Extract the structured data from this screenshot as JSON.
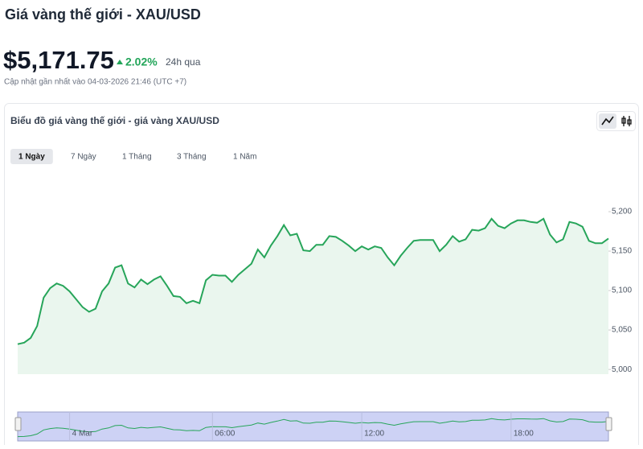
{
  "header": {
    "title": "Giá vàng thế giới - XAU/USD",
    "price": "$5,171.75",
    "change": "2.02%",
    "period": "24h qua",
    "updated": "Cập nhật gần nhất vào 04-03-2026 21:46 (UTC +7)"
  },
  "tabs": {
    "items": [
      "1 Ngày",
      "7 Ngày",
      "1 Tháng",
      "3 Tháng",
      "1 Năm"
    ],
    "active": 0
  },
  "chart_data": {
    "type": "line",
    "title": "Biểu đồ giá vàng thế giới - giá vàng XAU/USD",
    "color": "#27a55a",
    "values": [
      5032,
      5034,
      5040,
      5055,
      5091,
      5103,
      5109,
      5106,
      5099,
      5089,
      5079,
      5073,
      5077,
      5099,
      5109,
      5129,
      5132,
      5109,
      5104,
      5114,
      5108,
      5114,
      5118,
      5106,
      5093,
      5092,
      5084,
      5087,
      5084,
      5113,
      5120,
      5119,
      5119,
      5111,
      5120,
      5127,
      5134,
      5152,
      5142,
      5157,
      5169,
      5183,
      5170,
      5172,
      5151,
      5150,
      5158,
      5158,
      5169,
      5168,
      5163,
      5157,
      5150,
      5156,
      5152,
      5156,
      5154,
      5142,
      5132,
      5144,
      5154,
      5163,
      5164,
      5164,
      5164,
      5150,
      5158,
      5169,
      5162,
      5165,
      5177,
      5176,
      5179,
      5191,
      5182,
      5179,
      5185,
      5189,
      5189,
      5187,
      5186,
      5191,
      5171,
      5161,
      5165,
      5187,
      5185,
      5181,
      5163,
      5160,
      5160,
      5166
    ],
    "ylim": [
      4994,
      5249
    ],
    "yticks": [
      {
        "value": 5000,
        "label": "5,000"
      },
      {
        "value": 5050,
        "label": "5,050"
      },
      {
        "value": 5100,
        "label": "5,100"
      },
      {
        "value": 5150,
        "label": "5,150"
      },
      {
        "value": 5200,
        "label": "5,200"
      }
    ],
    "navigator": {
      "xticks": [
        {
          "value": 8,
          "label": "4 Mar"
        },
        {
          "value": 30,
          "label": "06:00"
        },
        {
          "value": 53,
          "label": "12:00"
        },
        {
          "value": 76,
          "label": "18:00"
        }
      ]
    }
  }
}
